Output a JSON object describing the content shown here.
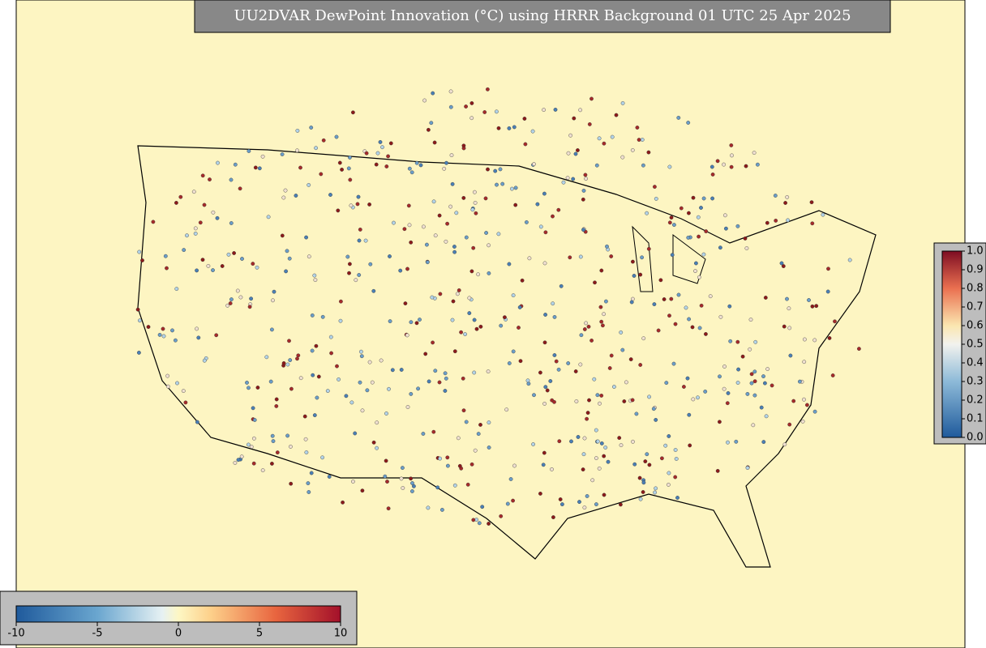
{
  "title": "UU2DVAR DewPoint Innovation (°C) using HRRR Background 01 UTC 25 Apr 2025",
  "innovation_colorbar": {
    "range": [
      -10,
      10
    ],
    "ticks": [
      -10,
      -5,
      0,
      5,
      10
    ]
  },
  "weight_colorbar": {
    "range": [
      0,
      1
    ],
    "ticks": [
      {
        "value": 0,
        "label": "0.0"
      },
      {
        "value": 0.1,
        "label": "0.1"
      },
      {
        "value": 0.2,
        "label": "0.2"
      },
      {
        "value": 0.3,
        "label": "0.3"
      },
      {
        "value": 0.4,
        "label": "0.4"
      },
      {
        "value": 0.5,
        "label": "0.5"
      },
      {
        "value": 0.6,
        "label": "0.6"
      },
      {
        "value": 0.7,
        "label": "0.7"
      },
      {
        "value": 0.8,
        "label": "0.8"
      },
      {
        "value": 0.9,
        "label": "0.9"
      },
      {
        "value": 1,
        "label": "1.0"
      }
    ]
  }
}
